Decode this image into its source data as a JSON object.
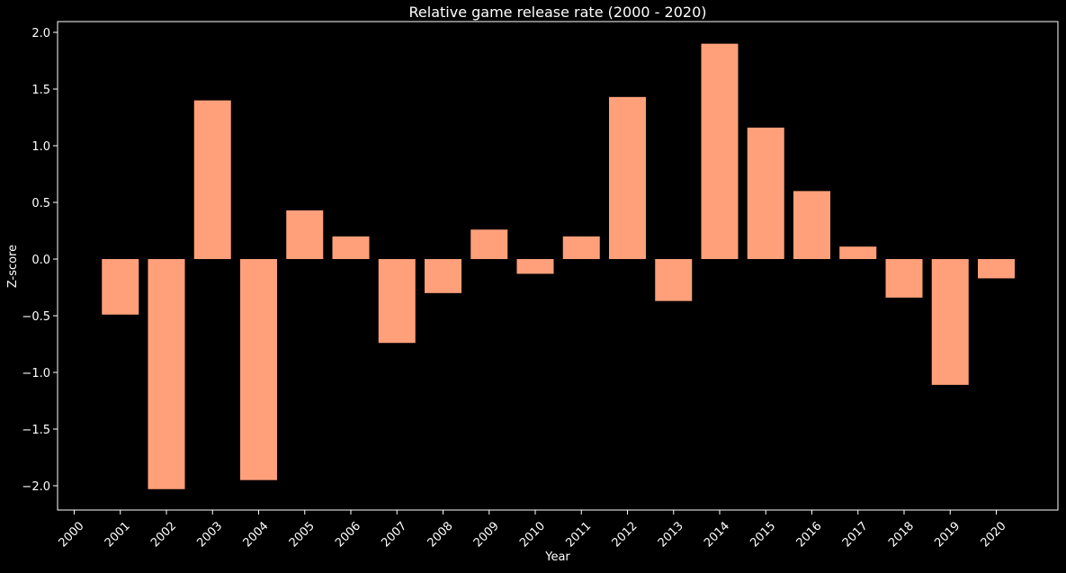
{
  "chart_data": {
    "type": "bar",
    "title": "Relative game release rate (2000 - 2020)",
    "xlabel": "Year",
    "ylabel": "Z-score",
    "categories": [
      "2000",
      "2001",
      "2002",
      "2003",
      "2004",
      "2005",
      "2006",
      "2007",
      "2008",
      "2009",
      "2010",
      "2011",
      "2012",
      "2013",
      "2014",
      "2015",
      "2016",
      "2017",
      "2018",
      "2019",
      "2020"
    ],
    "values": [
      null,
      -0.49,
      -2.03,
      1.4,
      -1.95,
      0.43,
      0.2,
      -0.74,
      -0.3,
      0.26,
      -0.13,
      0.2,
      1.43,
      -0.37,
      1.9,
      1.16,
      0.6,
      0.11,
      -0.34,
      -1.11,
      -0.17
    ],
    "yticks": [
      -2.0,
      -1.5,
      -1.0,
      -0.5,
      0.0,
      0.5,
      1.0,
      1.5,
      2.0
    ],
    "ytick_labels": [
      "−2.0",
      "−1.5",
      "−1.0",
      "−0.5",
      "0.0",
      "0.5",
      "1.0",
      "1.5",
      "2.0"
    ],
    "ylim": [
      -2.23,
      2.1
    ],
    "grid": false,
    "colors": {
      "bar": "#ffa07a",
      "background": "#000000",
      "axes": "#ffffff",
      "text": "#ffffff"
    }
  }
}
